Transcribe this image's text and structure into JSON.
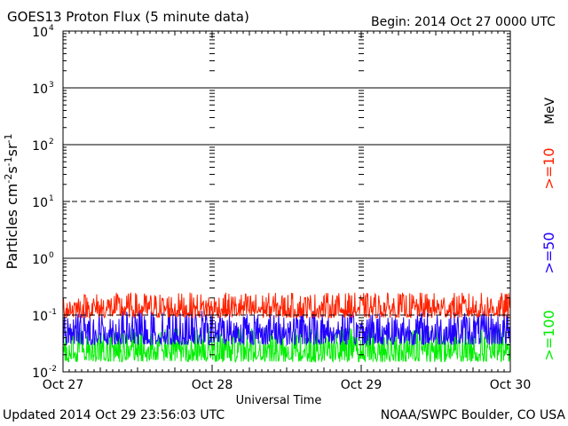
{
  "header": {
    "title": "GOES13 Proton Flux (5 minute data)",
    "begin": "Begin: 2014 Oct 27 0000 UTC"
  },
  "footer": {
    "updated": "Updated 2014 Oct 29 23:56:03 UTC",
    "credit": "NOAA/SWPC Boulder, CO USA"
  },
  "colors": {
    "ge10": "#ff2200",
    "ge50": "#2200ff",
    "ge100": "#00ee00",
    "axis": "#000000",
    "background": "#ffffff"
  },
  "chart_data": {
    "type": "line",
    "title": "GOES13 Proton Flux (5 minute data)",
    "xlabel": "Universal Time",
    "ylabel": "Particles cm-2s-1sr-1",
    "yscale": "log",
    "ylim": [
      0.01,
      10000
    ],
    "xlim": [
      "2014-10-27 00:00",
      "2014-10-30 00:00"
    ],
    "x_ticks": [
      "Oct 27",
      "Oct 28",
      "Oct 29",
      "Oct 30"
    ],
    "y_ticks": [
      {
        "base": "10",
        "exp": "-2",
        "value": 0.01
      },
      {
        "base": "10",
        "exp": "-1",
        "value": 0.1
      },
      {
        "base": "10",
        "exp": "0",
        "value": 1
      },
      {
        "base": "10",
        "exp": "1",
        "value": 10
      },
      {
        "base": "10",
        "exp": "2",
        "value": 100
      },
      {
        "base": "10",
        "exp": "3",
        "value": 1000
      },
      {
        "base": "10",
        "exp": "4",
        "value": 10000
      }
    ],
    "grid": "horizontal at each decade; dashed at 10^1 and 10^-1",
    "unit_label": "MeV",
    "legend_placement": "right",
    "series": [
      {
        "name": ">=10",
        "color": "#ff2200",
        "typical_range": [
          0.09,
          0.25
        ]
      },
      {
        "name": ">=50",
        "color": "#2200ff",
        "typical_range": [
          0.03,
          0.12
        ]
      },
      {
        "name": ">=100",
        "color": "#00ee00",
        "typical_range": [
          0.015,
          0.06
        ]
      }
    ]
  }
}
